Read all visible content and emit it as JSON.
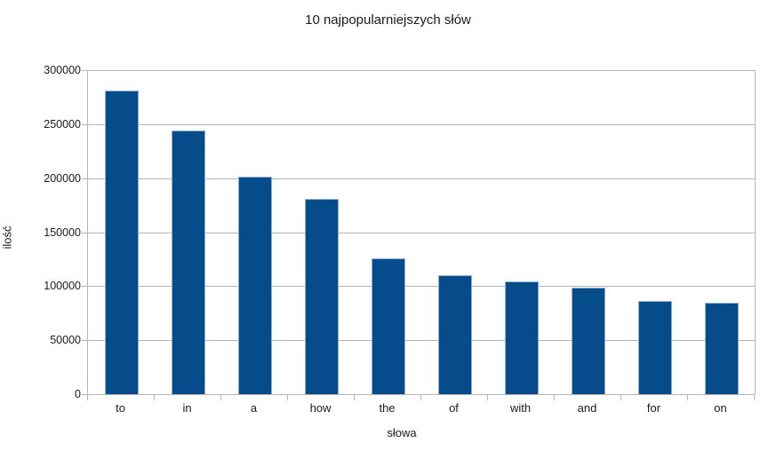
{
  "chart_data": {
    "type": "bar",
    "title": "10 najpopularniejszych słów",
    "xlabel": "słowa",
    "ylabel": "ilość",
    "categories": [
      "to",
      "in",
      "a",
      "how",
      "the",
      "of",
      "with",
      "and",
      "for",
      "on"
    ],
    "values": [
      281000,
      244000,
      201000,
      180500,
      125500,
      110000,
      104500,
      99000,
      86000,
      84500
    ],
    "ylim": [
      0,
      300000
    ],
    "ytick_step": 50000,
    "ytick_labels": [
      "0",
      "50000",
      "100000",
      "150000",
      "200000",
      "250000",
      "300000"
    ],
    "grid": "horizontal",
    "legend": "none",
    "colors": {
      "bar_fill": "#064c8a",
      "bar_border": "#8fb0d3",
      "gridline": "#b5b5b5",
      "text": "#1a1a1a",
      "background": "#ffffff"
    }
  }
}
